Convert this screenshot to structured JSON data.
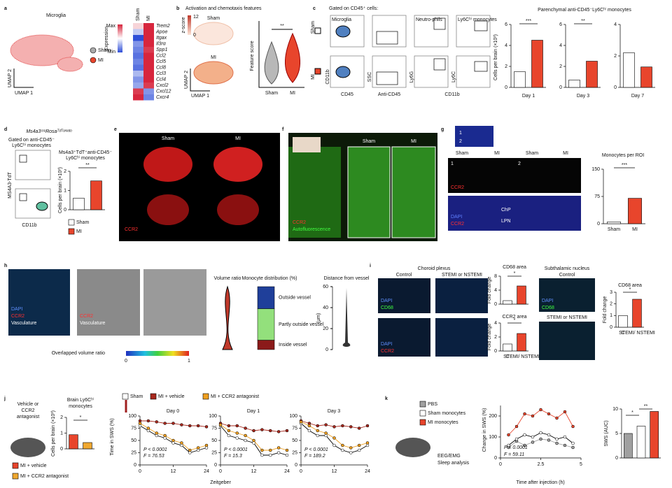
{
  "panel_a": {
    "letter": "a",
    "title": "Microglia",
    "y_axis": "UMAP 2",
    "x_axis": "UMAP 1",
    "legend": [
      "Sham",
      "MI"
    ],
    "scale_title": "Expression",
    "scale_max": "Max",
    "scale_min": "Min",
    "columns": [
      "Sham",
      "MI"
    ],
    "genes": [
      "Trem2",
      "Apoe",
      "Itgax",
      "Il3rα",
      "Spp1",
      "Ccl2",
      "Ccl5",
      "Ccl8",
      "Ccl3",
      "Ccl4",
      "Cxcl2",
      "Cxcl12",
      "Cxcr4"
    ],
    "heatmap_range": [
      -1,
      1
    ],
    "heatmap": [
      [
        0.2,
        1
      ],
      [
        -0.3,
        1
      ],
      [
        -1,
        1
      ],
      [
        -0.6,
        1
      ],
      [
        -0.7,
        0.9
      ],
      [
        -0.8,
        1
      ],
      [
        -0.7,
        1
      ],
      [
        -0.8,
        1
      ],
      [
        -0.4,
        1
      ],
      [
        -0.6,
        1
      ],
      [
        -0.5,
        0.9
      ],
      [
        0.9,
        -0.6
      ],
      [
        1,
        -0.7
      ]
    ]
  },
  "panel_b": {
    "letter": "b",
    "title": "Activation and chemotaxis features",
    "scale_label": "z-score",
    "scale_ticks": [
      12,
      0
    ],
    "umap_labels": [
      "Sham",
      "MI"
    ],
    "y_axis": "UMAP 2",
    "x_axis": "UMAP 1",
    "violin_y": "Feature score",
    "violin_x": [
      "Sham",
      "MI"
    ],
    "significance": "**"
  },
  "panel_c": {
    "letter": "c",
    "gating_title": "Gated on CD45⁺ cells:",
    "gate_labels": [
      "Microglia",
      "Neutro-phils",
      "Ly6Cʰⁱ monocytes"
    ],
    "rows": [
      "Sham",
      "MI"
    ],
    "x_axes": [
      "CD45",
      "Anti-CD45",
      "CD11b"
    ],
    "y_axes": [
      "CD11b",
      "SSC",
      "Ly6G",
      "Ly6C"
    ],
    "chart": {
      "title": "Parenchymal anti-CD45⁻Ly6Cʰⁱ monocytes",
      "y_label": "Cells per brain (×10³)",
      "colors": [
        "#ffffff",
        "#e8452c"
      ],
      "groups": [
        {
          "name": "Day 1",
          "values": [
            1.5,
            4.5
          ],
          "ylim": [
            0,
            6
          ],
          "yticks": [
            0,
            2,
            4,
            6
          ],
          "significance": "***"
        },
        {
          "name": "Day 3",
          "values": [
            0.7,
            2.5
          ],
          "ylim": [
            0,
            6
          ],
          "yticks": [
            0,
            2,
            4,
            6
          ],
          "significance": "**"
        },
        {
          "name": "Day 7",
          "values": [
            2.2,
            1.3
          ],
          "ylim": [
            0,
            4
          ],
          "yticks": [
            0,
            2,
            4
          ]
        }
      ]
    }
  },
  "panel_d": {
    "letter": "d",
    "title": "Ms4a3ᶜʳᵉRosaᵀᵈᵀᵒᵐᵃᵗᵒ",
    "gate": [
      "Gated on anti-CD45⁻",
      "Ly6Cʰⁱ monocytes"
    ],
    "y_axis": "MS4A3-TdT",
    "x_axis": "CD11b",
    "chart": {
      "title": [
        "Ms4a3⁺TdT⁺anti-CD45⁻",
        "Ly6Cʰⁱ monocytes"
      ],
      "y_label": "Cells per brain (×10³)",
      "values": [
        0.6,
        1.5
      ],
      "ylim": [
        0,
        2
      ],
      "yticks": [
        0,
        1,
        2
      ],
      "significance": "**",
      "legend": [
        "Sham",
        "MI"
      ],
      "colors": [
        "#ffffff",
        "#e8452c"
      ]
    }
  },
  "panel_e": {
    "letter": "e",
    "labels": [
      "Sham",
      "MI"
    ],
    "stain": "CCR2"
  },
  "panel_f": {
    "letter": "f",
    "labels": [
      "Sham",
      "MI"
    ],
    "stains": [
      "CCR2",
      "Autofluorescence"
    ]
  },
  "panel_g": {
    "letter": "g",
    "inset_labels": [
      "1",
      "2"
    ],
    "columns": [
      "Sham",
      "MI",
      "Sham",
      "MI"
    ],
    "regions": [
      "1",
      "2"
    ],
    "stains": [
      "CCR2",
      "DAPI",
      "CCR2"
    ],
    "annotations": [
      "ChP",
      "LPN"
    ],
    "chart": {
      "title": "Monocytes per ROI",
      "categories": [
        "Sham",
        "MI"
      ],
      "values": [
        5,
        70
      ],
      "ylim": [
        0,
        150
      ],
      "yticks": [
        0,
        75,
        150
      ],
      "significance": "***",
      "colors": [
        "#ffffff",
        "#e8452c"
      ]
    }
  },
  "panel_h": {
    "letter": "h",
    "stains_1": [
      "DAPI",
      "CCR2",
      "Vasculature"
    ],
    "stains_2": [
      "CCR2",
      "Vasculature"
    ],
    "colorbar_title": "Overlapped volume ratio",
    "colorbar_ticks": [
      0,
      1
    ],
    "violin_title": "Volume ratio",
    "distribution": {
      "title": "Monocyte distribution (%)",
      "ylim": [
        0,
        100
      ],
      "segments": [
        {
          "name": "Inside vessel",
          "color": "#8b1a1a",
          "value": 15
        },
        {
          "name": "Partly outside vessel",
          "color": "#93e07c",
          "value": 50
        },
        {
          "name": "Outside vessel",
          "color": "#1f3f9a",
          "value": 35
        }
      ]
    },
    "distance": {
      "title": "Distance from vessel",
      "y_label": "(μm)",
      "ylim": [
        0,
        60
      ],
      "yticks": [
        0,
        20,
        40,
        60
      ]
    }
  },
  "panel_i": {
    "letter": "i",
    "title_left": "Choroid plexus",
    "columns": [
      "Control",
      "STEMI or NSTEMI"
    ],
    "stains_1": [
      "DAPI",
      "CD68"
    ],
    "stains_2": [
      "DAPI",
      "CCR2"
    ],
    "title_right": "Subthalamic nucleus",
    "right_rows": [
      "Control",
      "STEMI or NSTEMI"
    ],
    "stains_3": [
      "DAPI",
      "CD68"
    ],
    "y_label": "Fold change",
    "categories": [
      "C",
      "STEMI/ NSTEMI"
    ],
    "colors": [
      "#ffffff",
      "#e8452c"
    ],
    "charts": [
      {
        "title": "CD68 area",
        "values": [
          1,
          5.2
        ],
        "ylim": [
          0,
          8
        ],
        "yticks": [
          0,
          4,
          8
        ],
        "significance": "*"
      },
      {
        "title": "CCR2 area",
        "values": [
          1,
          2.5
        ],
        "ylim": [
          0,
          4
        ],
        "yticks": [
          0,
          2,
          4
        ],
        "significance": "*"
      },
      {
        "title": "CD68 area",
        "values": [
          1,
          2.4
        ],
        "ylim": [
          0,
          3
        ],
        "yticks": [
          0,
          1,
          2,
          3
        ],
        "significance": "*"
      }
    ]
  },
  "panel_j": {
    "letter": "j",
    "treatment": [
      "Vehicle or",
      "CCR2",
      "antagonist"
    ],
    "bar": {
      "title": [
        "Brain Ly6Cʰⁱ",
        "monocytes"
      ],
      "y_label": "Cells per brain (×10³)",
      "values": [
        0.9,
        0.4
      ],
      "ylim": [
        0,
        2
      ],
      "yticks": [
        0,
        1,
        2
      ],
      "significance": "*",
      "legend": [
        "MI + vehicle",
        "MI + CCR2 antagonist"
      ],
      "colors": [
        "#e8452c",
        "#f0a830"
      ]
    },
    "lines": {
      "legend": [
        "Sham",
        "MI + vehicle",
        "MI + CCR2 antagonist"
      ],
      "colors": [
        "#ffffff",
        "#a8281d",
        "#f0a020"
      ],
      "y_label": "Time in SWS (%)",
      "x_label": "Zeitgeber",
      "x": [
        0,
        3,
        6,
        9,
        12,
        15,
        18,
        21,
        24
      ],
      "xlim": [
        0,
        24
      ],
      "xticks": [
        0,
        12,
        24
      ],
      "ylim": [
        0,
        100
      ],
      "yticks": [
        0,
        25,
        50,
        75,
        100
      ],
      "days": [
        {
          "name": "Day 0",
          "stats": [
            "P < 0.0001",
            "F = 76.53"
          ],
          "series": [
            [
              80,
              70,
              60,
              55,
              45,
              40,
              25,
              30,
              35
            ],
            [
              90,
              90,
              88,
              85,
              85,
              82,
              80,
              80,
              78
            ],
            [
              85,
              75,
              65,
              60,
              50,
              45,
              30,
              35,
              40
            ]
          ]
        },
        {
          "name": "Day 1",
          "stats": [
            "P < 0.0001",
            "F = 15.3"
          ],
          "series": [
            [
              80,
              60,
              55,
              50,
              45,
              20,
              20,
              25,
              20
            ],
            [
              85,
              80,
              80,
              75,
              70,
              72,
              70,
              68,
              70
            ],
            [
              82,
              70,
              65,
              60,
              50,
              30,
              30,
              35,
              30
            ]
          ]
        },
        {
          "name": "Day 3",
          "stats": [
            "P < 0.0001",
            "F = 189.2"
          ],
          "series": [
            [
              85,
              70,
              60,
              60,
              40,
              30,
              25,
              30,
              40
            ],
            [
              90,
              85,
              80,
              82,
              78,
              80,
              78,
              75,
              80
            ],
            [
              88,
              80,
              70,
              65,
              55,
              40,
              35,
              40,
              45
            ]
          ]
        }
      ]
    }
  },
  "panel_k": {
    "letter": "k",
    "legend": [
      "PBS",
      "Sham monocytes",
      "MI monocytes"
    ],
    "colors": [
      "#a0a0a0",
      "#ffffff",
      "#e8452c"
    ],
    "recording": [
      "EEG/EMG",
      "Sleep analysis"
    ],
    "lines": {
      "y_label": "Change in SWS (%)",
      "x_label": "Time after injection (h)",
      "x": [
        0.5,
        1,
        1.5,
        2,
        2.5,
        3,
        3.5,
        4,
        4.5
      ],
      "xlim": [
        0,
        5
      ],
      "xticks": [
        0,
        2.5,
        5
      ],
      "ylim": [
        0,
        250
      ],
      "yticks": [
        0,
        100,
        200
      ],
      "stats": [
        "P < 0.0001",
        "F = 59.11"
      ],
      "series": [
        [
          50,
          80,
          60,
          75,
          90,
          85,
          70,
          60,
          50
        ],
        [
          60,
          90,
          110,
          100,
          120,
          110,
          90,
          100,
          70
        ],
        [
          110,
          150,
          210,
          200,
          230,
          210,
          190,
          220,
          150
        ]
      ]
    },
    "bar": {
      "y_label": "SWS (AUC)",
      "values": [
        5,
        6.5,
        9.5
      ],
      "ylim": [
        0,
        10
      ],
      "yticks": [
        0,
        5,
        10
      ],
      "significance": [
        "*",
        "**"
      ]
    }
  }
}
